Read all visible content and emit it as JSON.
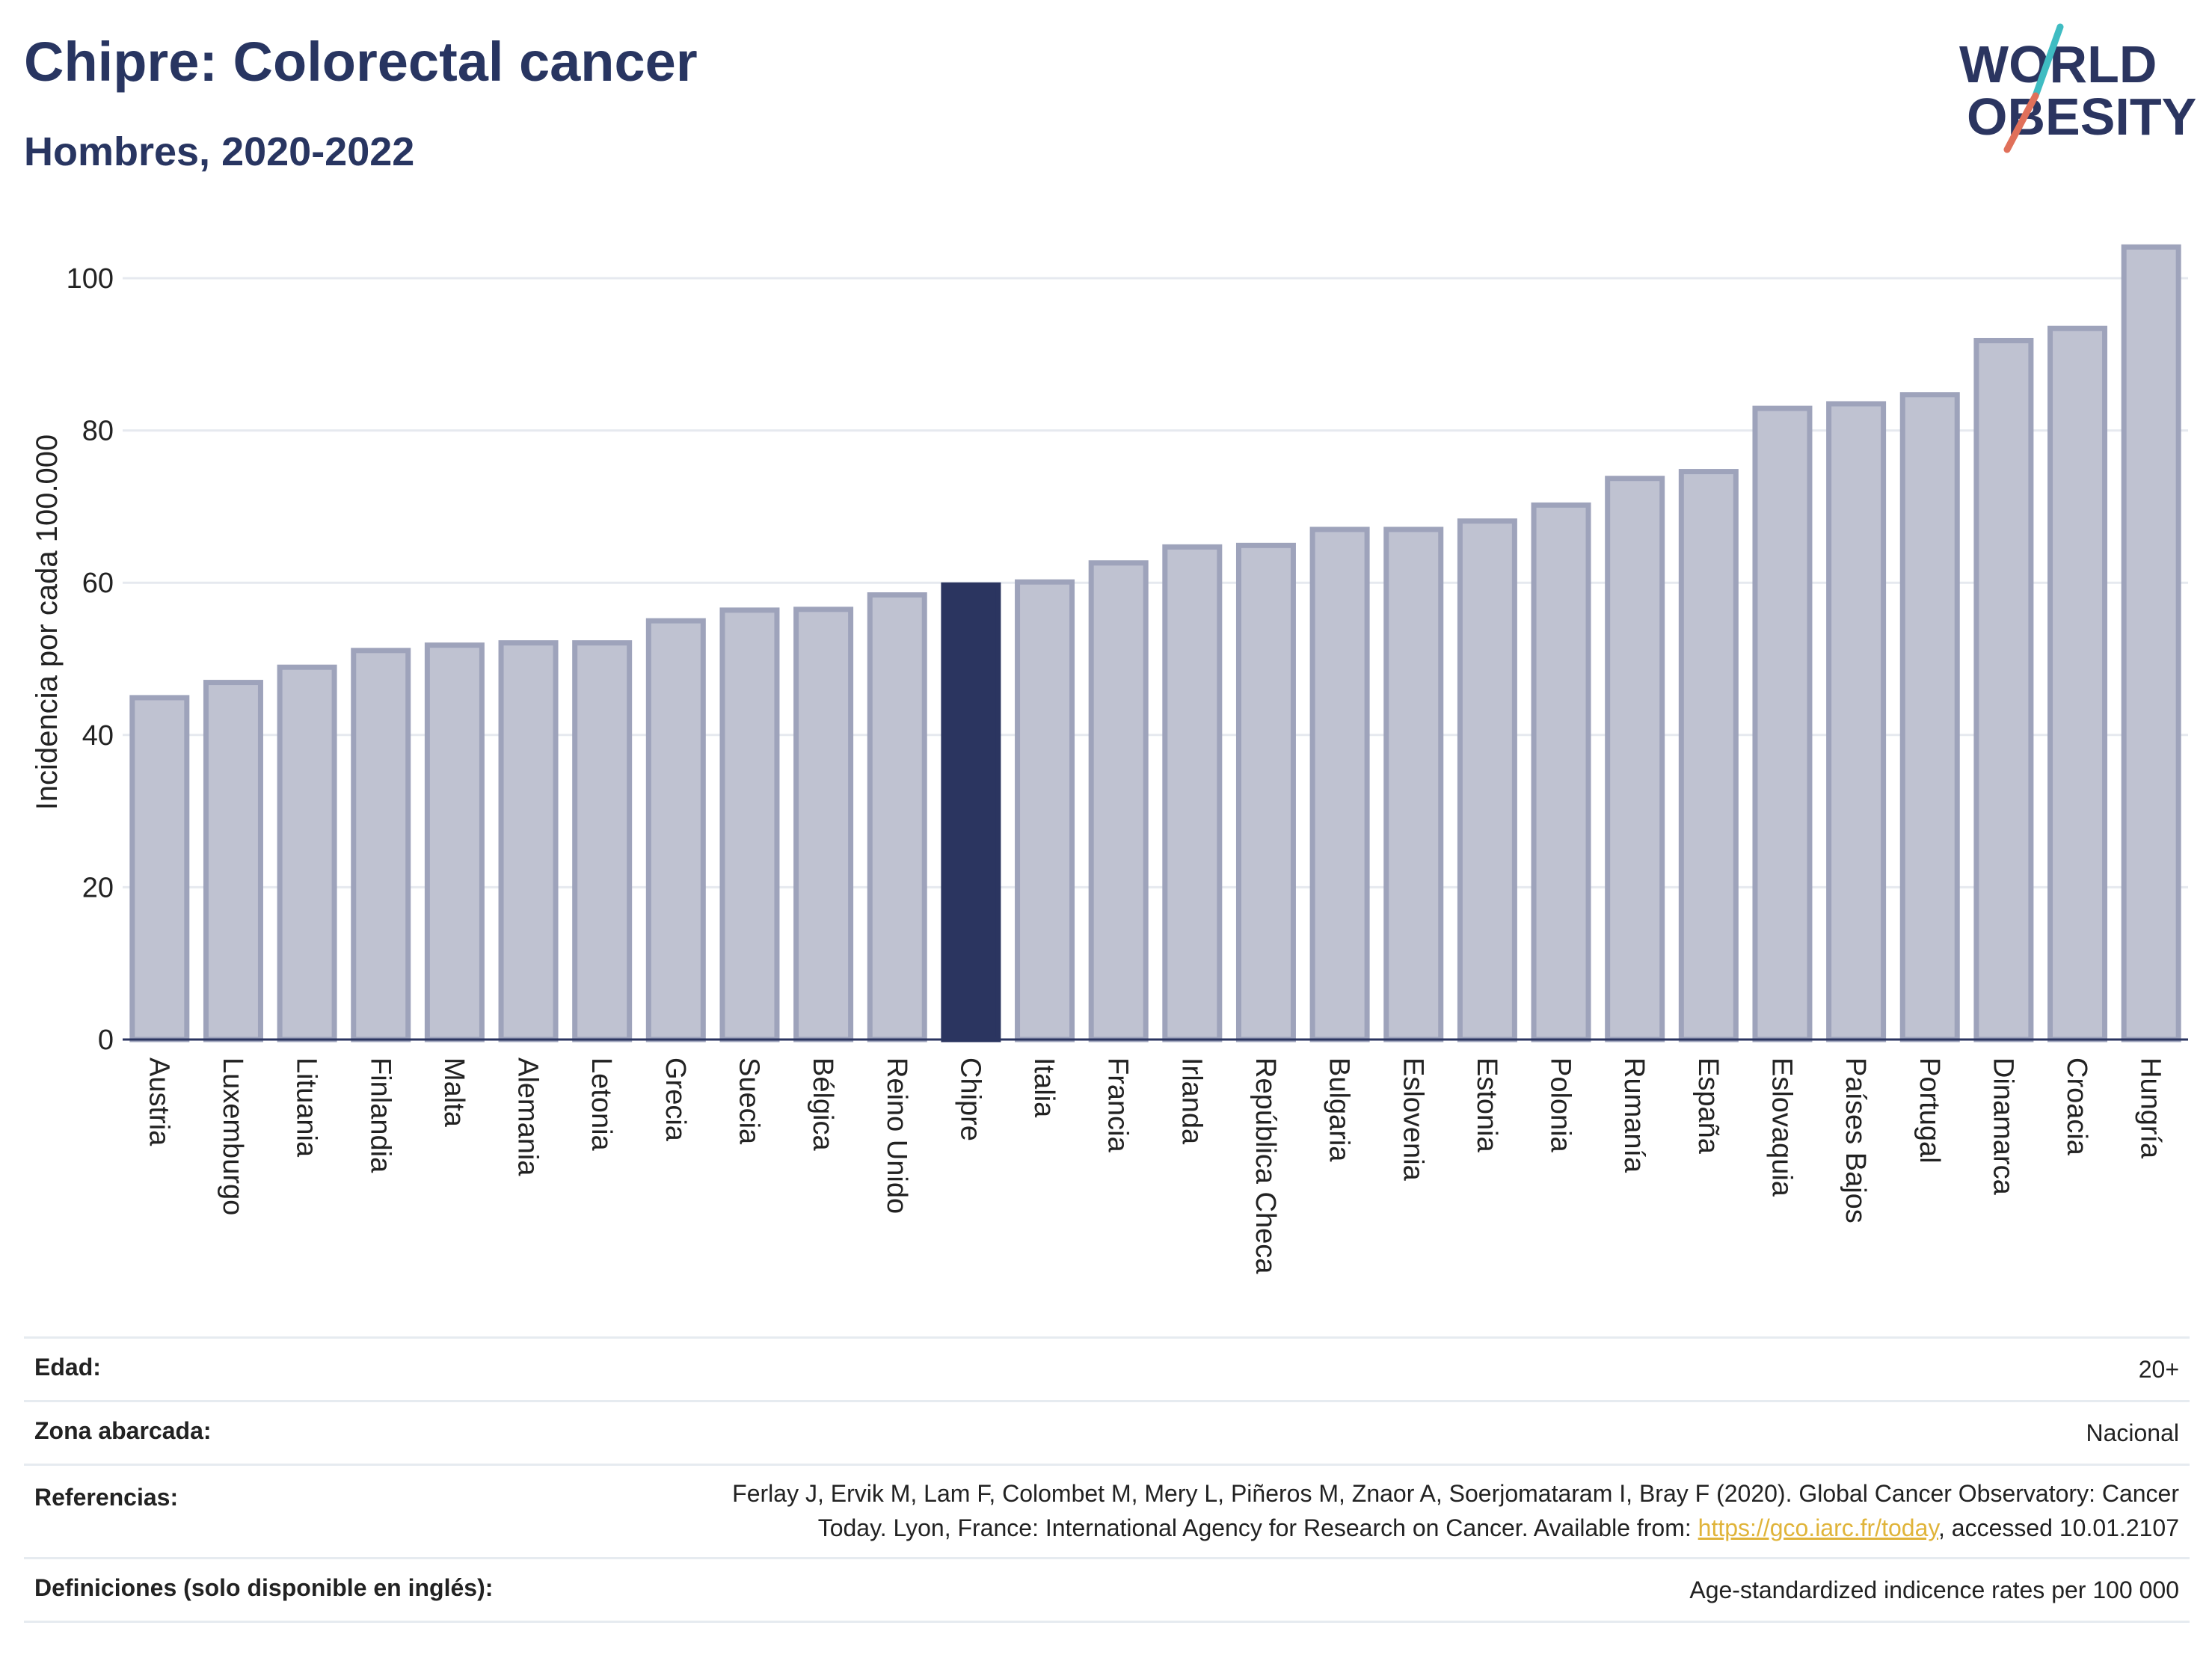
{
  "header": {
    "title": "Chipre: Colorectal cancer",
    "subtitle": "Hombres, 2020-2022"
  },
  "logo": {
    "line1": "WORLD",
    "line2": "OBESITY"
  },
  "colors": {
    "bar_fill": "#bfc2d1",
    "bar_stroke": "#9ea3bb",
    "highlight": "#2b3560",
    "logo_teal": "#3fbcc2",
    "logo_coral": "#e0705a",
    "link": "#e0b43a"
  },
  "chart_data": {
    "type": "bar",
    "title": "Chipre: Colorectal cancer",
    "subtitle": "Hombres, 2020-2022",
    "ylabel": "Incidencia por cada 100.000",
    "ylim": [
      0,
      105
    ],
    "yticks": [
      0,
      20,
      40,
      60,
      80,
      100
    ],
    "grid": true,
    "highlight": "Chipre",
    "categories": [
      "Austria",
      "Luxemburgo",
      "Lituania",
      "Finlandia",
      "Malta",
      "Alemania",
      "Letonia",
      "Grecia",
      "Suecia",
      "Bélgica",
      "Reino Unido",
      "Chipre",
      "Italia",
      "Francia",
      "Irlanda",
      "República Checa",
      "Bulgaria",
      "Eslovenia",
      "Estonia",
      "Polonia",
      "Rumanía",
      "España",
      "Eslovaquia",
      "Países Bajos",
      "Portugal",
      "Dinamarca",
      "Croacia",
      "Hungría"
    ],
    "values": [
      44.9,
      46.9,
      48.9,
      51.1,
      51.8,
      52.1,
      52.1,
      55.0,
      56.4,
      56.5,
      58.4,
      59.7,
      60.1,
      62.6,
      64.7,
      64.9,
      67.0,
      67.0,
      68.1,
      70.2,
      73.7,
      74.6,
      82.9,
      83.5,
      84.7,
      91.8,
      93.4,
      104.1
    ]
  },
  "info": {
    "rows": [
      {
        "label": "Edad:",
        "value": "20+"
      },
      {
        "label": "Zona abarcada:",
        "value": "Nacional"
      },
      {
        "label": "Referencias:",
        "value_line1": "Ferlay J, Ervik M, Lam F, Colombet M, Mery L, Piñeros M, Znaor A, Soerjomataram I, Bray F (2020). Global Cancer Observatory: Cancer",
        "value_line2_pre": "Today. Lyon, France: International Agency for Research on Cancer. Available from: ",
        "link": "https://gco.iarc.fr/today",
        "value_line2_post": ", accessed 10.01.2107"
      },
      {
        "label": "Definiciones (solo disponible en inglés):",
        "value": "Age-standardized indicence rates per 100 000"
      }
    ]
  }
}
